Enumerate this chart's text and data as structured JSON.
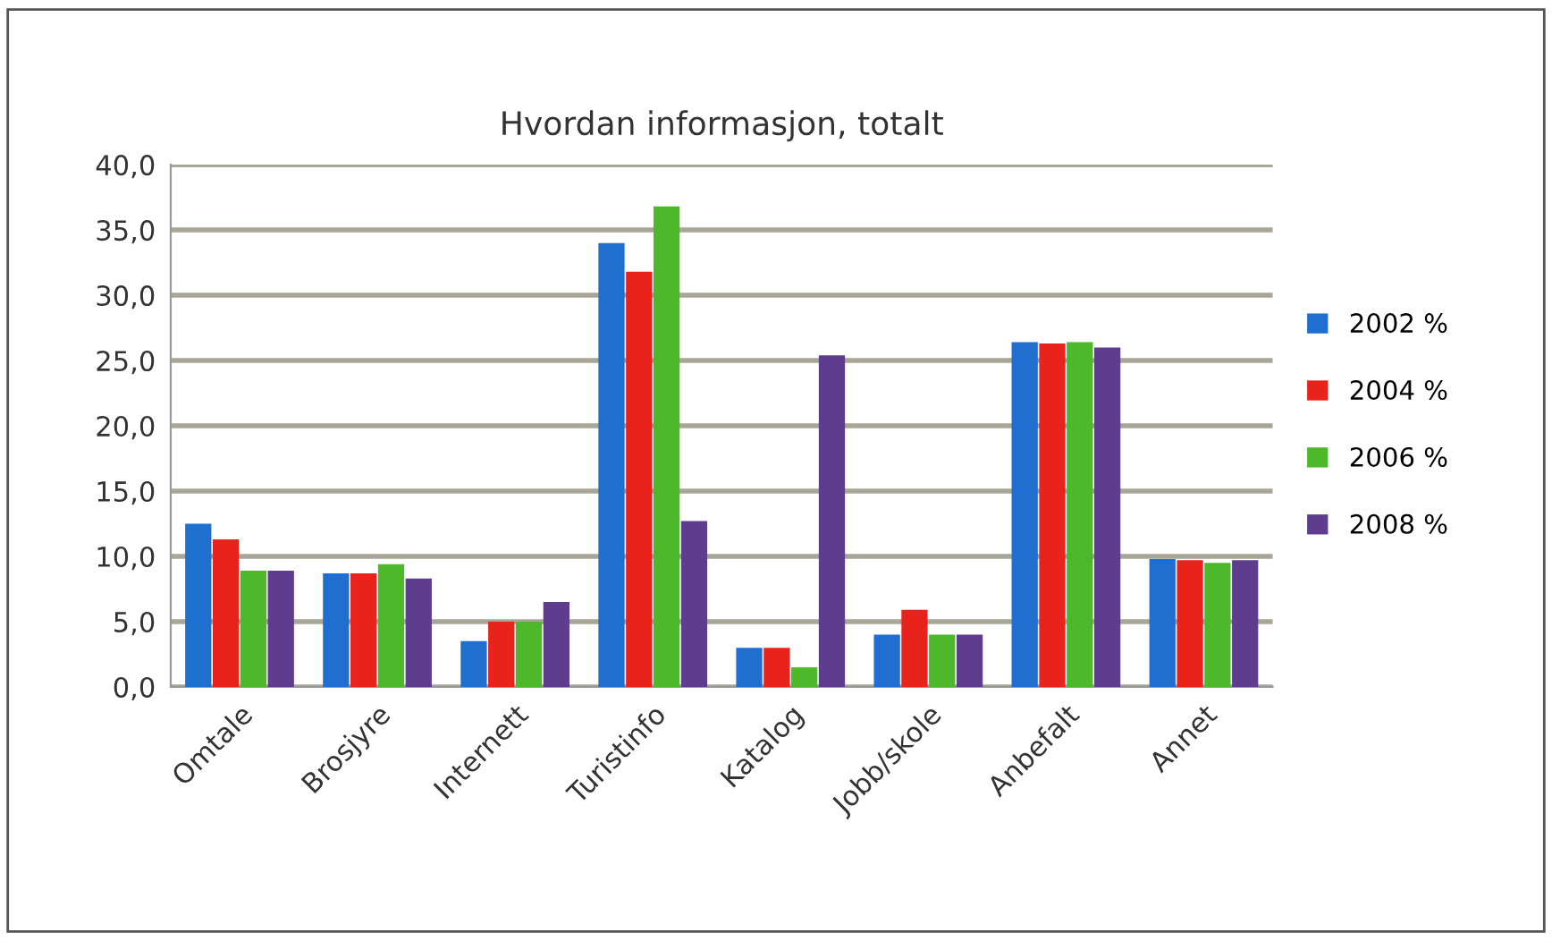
{
  "chart_data": {
    "type": "bar",
    "title": "Hvordan informasjon, totalt",
    "categories": [
      "Omtale",
      "Brosjyre",
      "Internett",
      "Turistinfo",
      "Katalog",
      "Jobb/skole",
      "Anbefalt",
      "Annet"
    ],
    "series": [
      {
        "name": "2002 %",
        "color": "#1f6fd0",
        "values": [
          12.5,
          8.7,
          3.5,
          34.0,
          3.0,
          4.0,
          26.4,
          9.8
        ]
      },
      {
        "name": "2004 %",
        "color": "#e8231c",
        "values": [
          11.3,
          8.7,
          5.0,
          31.8,
          3.0,
          5.9,
          26.3,
          9.7
        ]
      },
      {
        "name": "2006 %",
        "color": "#4cb82a",
        "values": [
          8.9,
          9.4,
          5.0,
          36.8,
          1.5,
          4.0,
          26.4,
          9.5
        ]
      },
      {
        "name": "2008 %",
        "color": "#5e3d8e",
        "values": [
          8.9,
          8.3,
          6.5,
          12.7,
          25.4,
          4.0,
          26.0,
          9.7
        ]
      }
    ],
    "ylim": [
      0,
      40
    ],
    "yticks": [
      {
        "value": 0,
        "label": "0,0"
      },
      {
        "value": 5,
        "label": "5,0"
      },
      {
        "value": 10,
        "label": "10,0"
      },
      {
        "value": 15,
        "label": "15,0"
      },
      {
        "value": 20,
        "label": "20,0"
      },
      {
        "value": 25,
        "label": "25,0"
      },
      {
        "value": 30,
        "label": "30,0"
      },
      {
        "value": 35,
        "label": "35,0"
      },
      {
        "value": 40,
        "label": "40,0"
      }
    ],
    "grid": "y",
    "legend": "right"
  }
}
